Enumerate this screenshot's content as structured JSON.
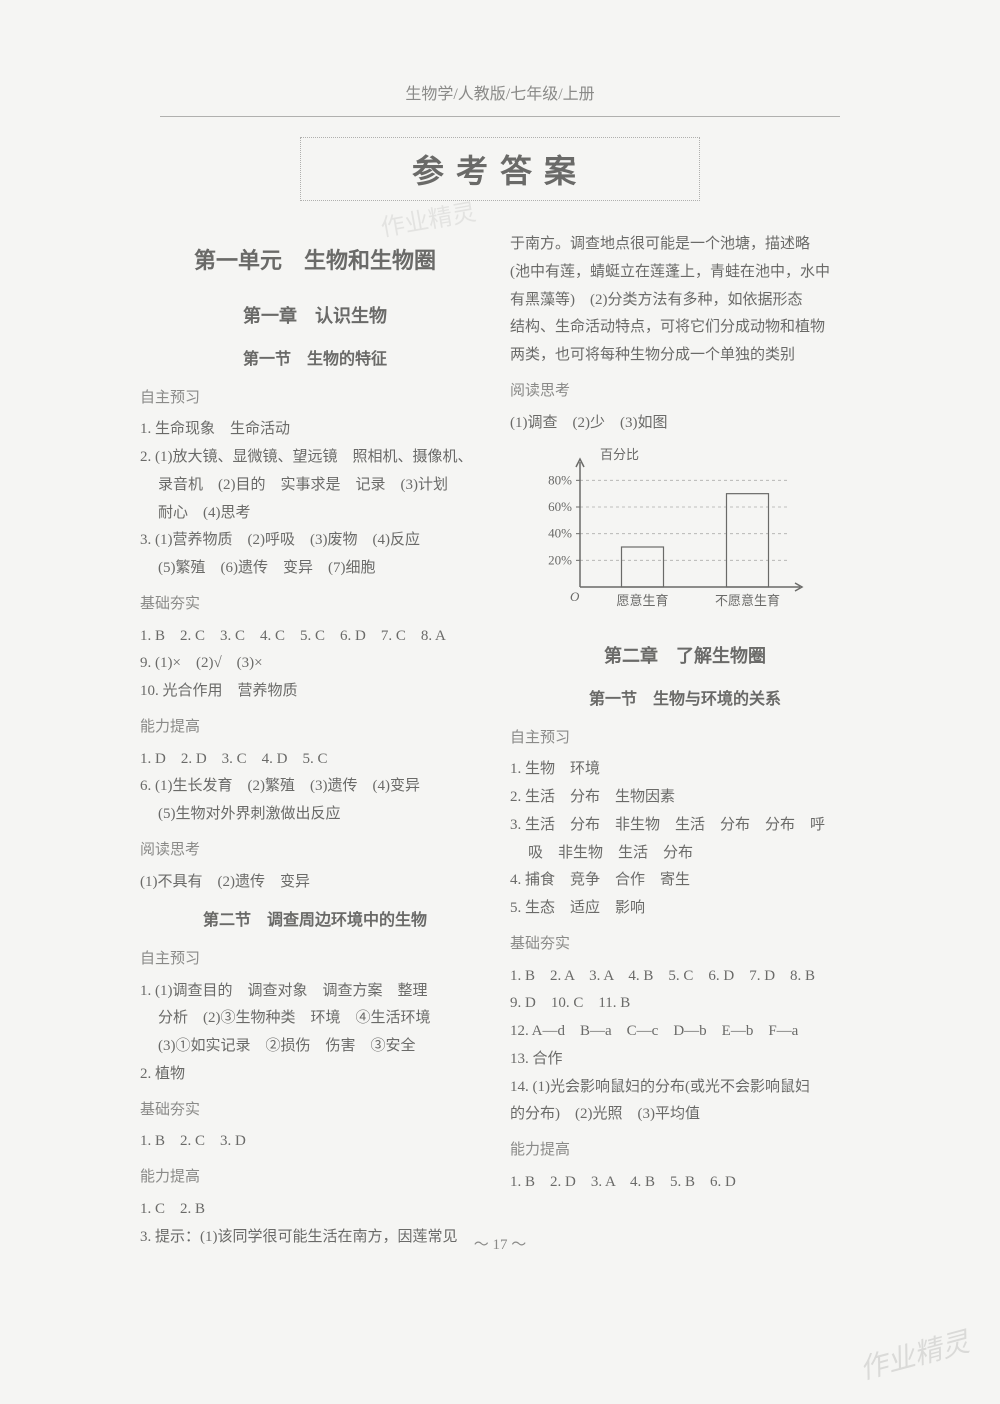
{
  "page_header": "生物学/人教版/七年级/上册",
  "main_title": "参考答案",
  "watermark_top": "作业精灵",
  "watermark_bottom": "作业精灵",
  "page_number": "～ 17 ～",
  "left_column": {
    "unit_title": "第一单元　生物和生物圈",
    "chapter1_title": "第一章　认识生物",
    "section1_title": "第一节　生物的特征",
    "zizhu1_label": "自主预习",
    "zizhu1_items": [
      "1. 生命现象　生命活动",
      "2. (1)放大镜、显微镜、望远镜　照相机、摄像机、",
      "录音机　(2)目的　实事求是　记录　(3)计划",
      "耐心　(4)思考",
      "3. (1)营养物质　(2)呼吸　(3)废物　(4)反应",
      "(5)繁殖　(6)遗传　变异　(7)细胞"
    ],
    "jichu1_label": "基础夯实",
    "jichu1_items": [
      "1. B　2. C　3. C　4. C　5. C　6. D　7. C　8. A",
      "9. (1)×　(2)√　(3)×",
      "10. 光合作用　营养物质"
    ],
    "nengli1_label": "能力提高",
    "nengli1_items": [
      "1. D　2. D　3. C　4. D　5. C",
      "6. (1)生长发育　(2)繁殖　(3)遗传　(4)变异",
      "(5)生物对外界刺激做出反应"
    ],
    "yuedu1_label": "阅读思考",
    "yuedu1_items": [
      "(1)不具有　(2)遗传　变异"
    ],
    "section2_title": "第二节　调查周边环境中的生物",
    "zizhu2_label": "自主预习",
    "zizhu2_items": [
      "1. (1)调查目的　调查对象　调查方案　整理",
      "分析　(2)③生物种类　环境　④生活环境",
      "(3)①如实记录　②损伤　伤害　③安全",
      "2. 植物"
    ],
    "jichu2_label": "基础夯实",
    "jichu2_items": [
      "1. B　2. C　3. D"
    ],
    "nengli2_label": "能力提高",
    "nengli2_items": [
      "1. C　2. B",
      "3. 提示：(1)该同学很可能生活在南方，因莲常见"
    ]
  },
  "right_column": {
    "continuation": [
      "于南方。调查地点很可能是一个池塘，描述略",
      "(池中有莲，蜻蜓立在莲蓬上，青蛙在池中，水中",
      "有黑藻等)　(2)分类方法有多种，如依据形态",
      "结构、生命活动特点，可将它们分成动物和植物",
      "两类，也可将每种生物分成一个单独的类别"
    ],
    "yuedu2_label": "阅读思考",
    "yuedu2_items": [
      "(1)调查　(2)少　(3)如图"
    ],
    "chart": {
      "type": "bar",
      "y_label": "百分比",
      "y_ticks": [
        20,
        40,
        60,
        80
      ],
      "y_max": 90,
      "categories": [
        "愿意生育",
        "不愿意生育"
      ],
      "values": [
        30,
        70
      ],
      "bar_color": "none",
      "bar_stroke": "#6a6a68",
      "axis_color": "#6a6a68",
      "font_size": 13,
      "origin_label": "O"
    },
    "chapter2_title": "第二章　了解生物圈",
    "section3_title": "第一节　生物与环境的关系",
    "zizhu3_label": "自主预习",
    "zizhu3_items": [
      "1. 生物　环境",
      "2. 生活　分布　生物因素",
      "3. 生活　分布　非生物　生活　分布　分布　呼",
      "吸　非生物　生活　分布",
      "4. 捕食　竞争　合作　寄生",
      "5. 生态　适应　影响"
    ],
    "jichu3_label": "基础夯实",
    "jichu3_items": [
      "1. B　2. A　3. A　4. B　5. C　6. D　7. D　8. B",
      "9. D　10. C　11. B",
      "12. A—d　B—a　C—c　D—b　E—b　F—a",
      "13. 合作",
      "14. (1)光会影响鼠妇的分布(或光不会影响鼠妇",
      "的分布)　(2)光照　(3)平均值"
    ],
    "nengli3_label": "能力提高",
    "nengli3_items": [
      "1. B　2. D　3. A　4. B　5. B　6. D"
    ]
  }
}
